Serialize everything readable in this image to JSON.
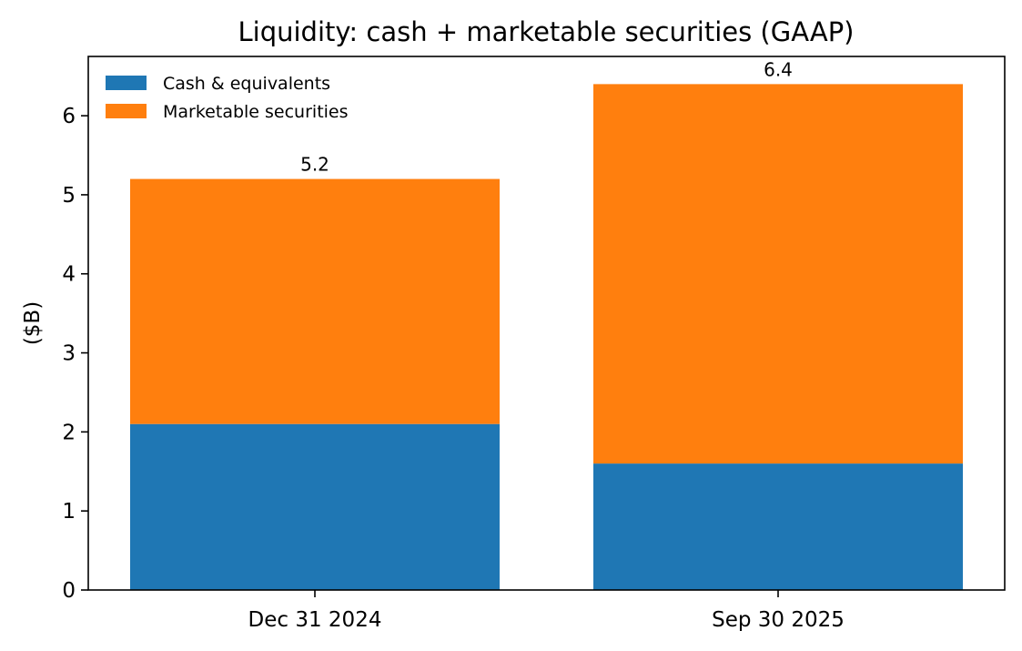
{
  "chart_data": {
    "type": "bar",
    "stacked": true,
    "title": "Liquidity: cash + marketable securities (GAAP)",
    "xlabel": "",
    "ylabel": "($B)",
    "categories": [
      "Dec 31 2024",
      "Sep 30 2025"
    ],
    "series": [
      {
        "name": "Cash & equivalents",
        "values": [
          2.1,
          1.6
        ],
        "color": "#1f77b4"
      },
      {
        "name": "Marketable securities",
        "values": [
          3.1,
          4.8
        ],
        "color": "#ff7f0e"
      }
    ],
    "total_labels": [
      "5.2",
      "6.4"
    ],
    "ylim": [
      0,
      6.75
    ],
    "yticks": [
      0,
      1,
      2,
      3,
      4,
      5,
      6
    ],
    "grid": false,
    "legend_position": "top-left"
  }
}
